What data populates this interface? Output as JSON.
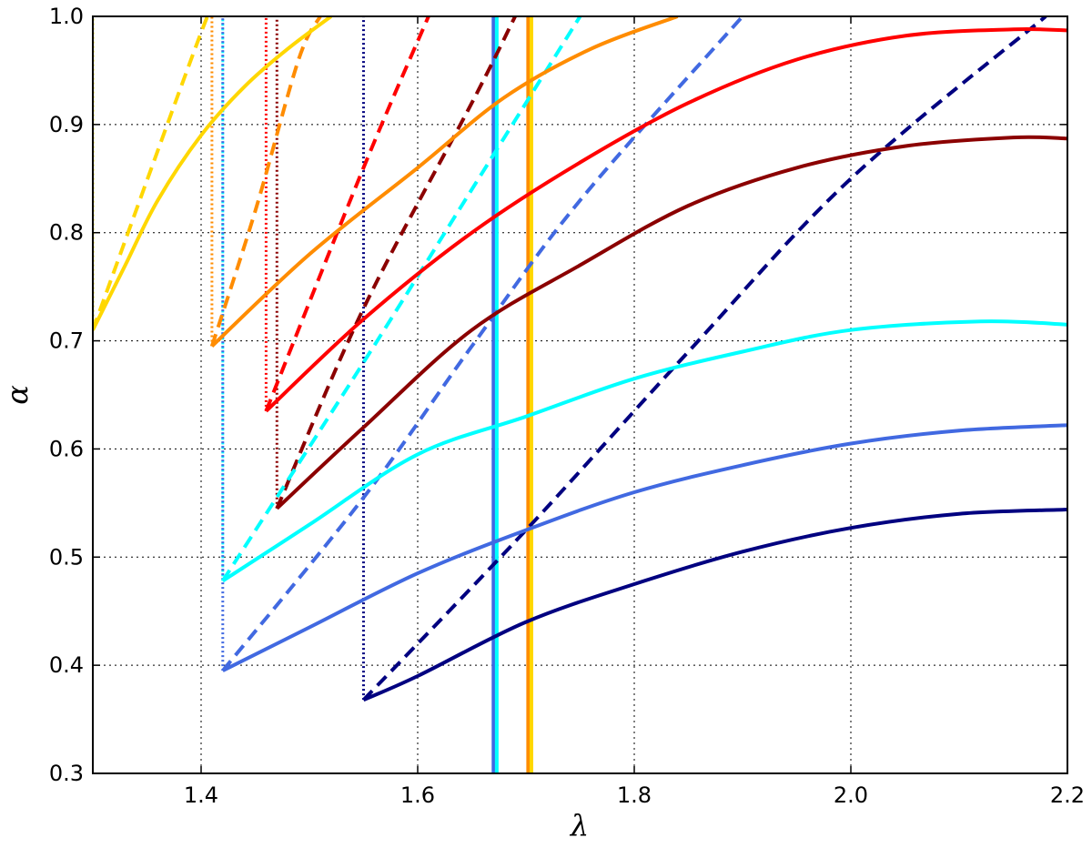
{
  "chart_data": {
    "type": "line",
    "xlabel": "λ",
    "ylabel": "α",
    "xlim": [
      1.3,
      2.2
    ],
    "ylim": [
      0.3,
      1.0
    ],
    "grid": true,
    "xticks": [
      1.4,
      1.6,
      1.8,
      2.0,
      2.2
    ],
    "xtick_labels": [
      "1.4",
      "1.6",
      "1.8",
      "2.0",
      "2.2"
    ],
    "yticks": [
      0.3,
      0.4,
      0.5,
      0.6,
      0.7,
      0.8,
      0.9,
      1.0
    ],
    "ytick_labels": [
      "0.3",
      "0.4",
      "0.5",
      "0.6",
      "0.7",
      "0.8",
      "0.9",
      "1.0"
    ],
    "series": [
      {
        "color": "#ffd700",
        "start": [
          1.3,
          0.71
        ],
        "solid": [
          [
            1.3,
            0.71
          ],
          [
            1.33,
            0.77
          ],
          [
            1.36,
            0.83
          ],
          [
            1.4,
            0.89
          ],
          [
            1.44,
            0.935
          ],
          [
            1.48,
            0.97
          ],
          [
            1.52,
            1.0
          ]
        ],
        "dashed": [
          [
            1.3,
            0.71
          ],
          [
            1.4,
            0.985
          ],
          [
            1.41,
            1.0
          ]
        ],
        "vline": {
          "x": 1.3,
          "y_top": 1.0
        }
      },
      {
        "color": "#ff8c00",
        "start": [
          1.41,
          0.695
        ],
        "solid": [
          [
            1.41,
            0.695
          ],
          [
            1.5,
            0.78
          ],
          [
            1.6,
            0.86
          ],
          [
            1.68,
            0.925
          ],
          [
            1.76,
            0.97
          ],
          [
            1.84,
            1.0
          ]
        ],
        "dashed": [
          [
            1.41,
            0.695
          ],
          [
            1.45,
            0.82
          ],
          [
            1.49,
            0.96
          ],
          [
            1.51,
            1.0
          ]
        ],
        "vline": {
          "x": 1.41,
          "y_top": 1.0
        }
      },
      {
        "color": "#ff0000",
        "start": [
          1.46,
          0.635
        ],
        "solid": [
          [
            1.46,
            0.635
          ],
          [
            1.55,
            0.72
          ],
          [
            1.65,
            0.8
          ],
          [
            1.75,
            0.865
          ],
          [
            1.85,
            0.92
          ],
          [
            1.95,
            0.96
          ],
          [
            2.05,
            0.982
          ],
          [
            2.15,
            0.988
          ],
          [
            2.2,
            0.987
          ]
        ],
        "dashed": [
          [
            1.46,
            0.635
          ],
          [
            1.55,
            0.86
          ],
          [
            1.61,
            1.0
          ]
        ],
        "vline": {
          "x": 1.46,
          "y_top": 1.0
        }
      },
      {
        "color": "#8b0000",
        "start": [
          1.47,
          0.545
        ],
        "solid": [
          [
            1.47,
            0.545
          ],
          [
            1.55,
            0.62
          ],
          [
            1.65,
            0.71
          ],
          [
            1.75,
            0.77
          ],
          [
            1.85,
            0.825
          ],
          [
            1.95,
            0.86
          ],
          [
            2.05,
            0.88
          ],
          [
            2.15,
            0.888
          ],
          [
            2.2,
            0.887
          ]
        ],
        "dashed": [
          [
            1.47,
            0.545
          ],
          [
            1.55,
            0.73
          ],
          [
            1.65,
            0.92
          ],
          [
            1.69,
            1.0
          ]
        ],
        "vline": {
          "x": 1.47,
          "y_top": 1.0
        }
      },
      {
        "color": "#00ffff",
        "start": [
          1.42,
          0.478
        ],
        "solid": [
          [
            1.42,
            0.478
          ],
          [
            1.5,
            0.53
          ],
          [
            1.6,
            0.595
          ],
          [
            1.7,
            0.63
          ],
          [
            1.8,
            0.665
          ],
          [
            1.9,
            0.69
          ],
          [
            2.0,
            0.71
          ],
          [
            2.12,
            0.718
          ],
          [
            2.2,
            0.715
          ]
        ],
        "dashed": [
          [
            1.42,
            0.478
          ],
          [
            1.55,
            0.68
          ],
          [
            1.65,
            0.84
          ],
          [
            1.75,
            1.0
          ]
        ],
        "vline": {
          "x": 1.42,
          "y_top": 1.0
        }
      },
      {
        "color": "#4169e1",
        "start": [
          1.42,
          0.395
        ],
        "solid": [
          [
            1.42,
            0.395
          ],
          [
            1.5,
            0.435
          ],
          [
            1.6,
            0.485
          ],
          [
            1.7,
            0.525
          ],
          [
            1.8,
            0.56
          ],
          [
            1.9,
            0.585
          ],
          [
            2.0,
            0.605
          ],
          [
            2.1,
            0.617
          ],
          [
            2.2,
            0.622
          ]
        ],
        "dashed": [
          [
            1.42,
            0.395
          ],
          [
            1.55,
            0.555
          ],
          [
            1.65,
            0.695
          ],
          [
            1.75,
            0.83
          ],
          [
            1.9,
            1.0
          ]
        ],
        "vline": {
          "x": 1.42,
          "y_top": 1.0
        }
      },
      {
        "color": "#000080",
        "start": [
          1.55,
          0.368
        ],
        "solid": [
          [
            1.55,
            0.368
          ],
          [
            1.6,
            0.39
          ],
          [
            1.7,
            0.44
          ],
          [
            1.8,
            0.475
          ],
          [
            1.9,
            0.505
          ],
          [
            2.0,
            0.527
          ],
          [
            2.1,
            0.54
          ],
          [
            2.2,
            0.544
          ]
        ],
        "dashed": [
          [
            1.55,
            0.368
          ],
          [
            1.7,
            0.525
          ],
          [
            1.85,
            0.69
          ],
          [
            2.0,
            0.85
          ],
          [
            2.18,
            1.0
          ]
        ],
        "vline": {
          "x": 1.55,
          "y_top": 1.0
        }
      }
    ],
    "vertical_markers": [
      {
        "x": 1.67,
        "color": "#4169e1"
      },
      {
        "x": 1.673,
        "color": "#00ffff"
      },
      {
        "x": 1.702,
        "color": "#ff8c00"
      },
      {
        "x": 1.705,
        "color": "#ffd700"
      }
    ]
  }
}
